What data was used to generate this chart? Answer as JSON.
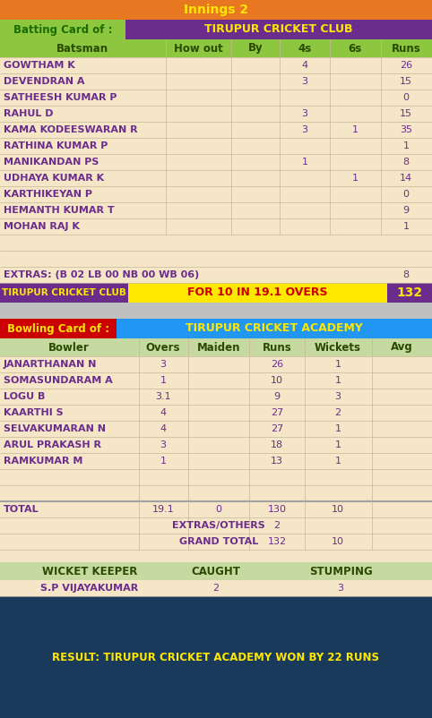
{
  "innings_title": "Innings 2",
  "batting_card_label": "Batting Card of :",
  "batting_team": "TIRUPUR CRICKET CLUB",
  "bat_headers": [
    "Batsman",
    "How out",
    "By",
    "4s",
    "6s",
    "Runs"
  ],
  "batsmen": [
    [
      "GOWTHAM K",
      "",
      "",
      "4",
      "",
      "26"
    ],
    [
      "DEVENDRAN A",
      "",
      "",
      "3",
      "",
      "15"
    ],
    [
      "SATHEESH KUMAR P",
      "",
      "",
      "",
      "",
      "0"
    ],
    [
      "RAHUL D",
      "",
      "",
      "3",
      "",
      "15"
    ],
    [
      "KAMA KODEESWARAN R",
      "",
      "",
      "3",
      "1",
      "35"
    ],
    [
      "RATHINA KUMAR P",
      "",
      "",
      "",
      "",
      "1"
    ],
    [
      "MANIKANDAN PS",
      "",
      "",
      "1",
      "",
      "8"
    ],
    [
      "UDHAYA KUMAR K",
      "",
      "",
      "",
      "1",
      "14"
    ],
    [
      "KARTHIKEYAN P",
      "",
      "",
      "",
      "",
      "0"
    ],
    [
      "HEMANTH KUMAR T",
      "",
      "",
      "",
      "",
      "9"
    ],
    [
      "MOHAN RAJ K",
      "",
      "",
      "",
      "",
      "1"
    ]
  ],
  "extras_label": "EXTRAS: (B 02 LB 00 NB 00 WB 06)",
  "extras_runs": "8",
  "summary_team": "TIRUPUR CRICKET CLUB",
  "summary_middle": "FOR 10 IN 19.1 OVERS",
  "summary_score": "132",
  "bowling_card_label": "Bowling Card of :",
  "bowling_team": "TIRUPUR CRICKET ACADEMY",
  "bowl_headers": [
    "Bowler",
    "Overs",
    "Maiden",
    "Runs",
    "Wickets",
    "Avg"
  ],
  "bowlers": [
    [
      "JANARTHANAN N",
      "3",
      "",
      "26",
      "1",
      ""
    ],
    [
      "SOMASUNDARAM A",
      "1",
      "",
      "10",
      "1",
      ""
    ],
    [
      "LOGU B",
      "3.1",
      "",
      "9",
      "3",
      ""
    ],
    [
      "KAARTHI S",
      "4",
      "",
      "27",
      "2",
      ""
    ],
    [
      "SELVAKUMARAN N",
      "4",
      "",
      "27",
      "1",
      ""
    ],
    [
      "ARUL PRAKASH R",
      "3",
      "",
      "18",
      "1",
      ""
    ],
    [
      "RAMKUMAR M",
      "1",
      "",
      "13",
      "1",
      ""
    ]
  ],
  "bowl_total_label": "TOTAL",
  "bowl_total": [
    "19.1",
    "0",
    "130",
    "10",
    ""
  ],
  "extras_others_label": "EXTRAS/OTHERS",
  "extras_others_val": "2",
  "grand_total_label": "GRAND TOTAL",
  "grand_total_runs": "132",
  "grand_total_wkts": "10",
  "wk_header": [
    "WICKET KEEPER",
    "CAUGHT",
    "STUMPING"
  ],
  "wk_name": "S.P VIJAYAKUMAR",
  "wk_caught": "2",
  "wk_stumping": "3",
  "result": "RESULT: TIRUPUR CRICKET ACADEMY WON BY 22 RUNS",
  "col_orange": "#E87722",
  "col_purple": "#6B2D8B",
  "col_green_header": "#8DC63F",
  "col_yellow": "#FFE800",
  "col_bg": "#F5E6C8",
  "col_red": "#CC0000",
  "col_blue_header": "#2196F3",
  "col_dark_blue": "#1A3A5C",
  "col_light_green": "#C5D9A0",
  "col_separator": "#C8B89A",
  "col_gray_sep": "#C0C0C0"
}
